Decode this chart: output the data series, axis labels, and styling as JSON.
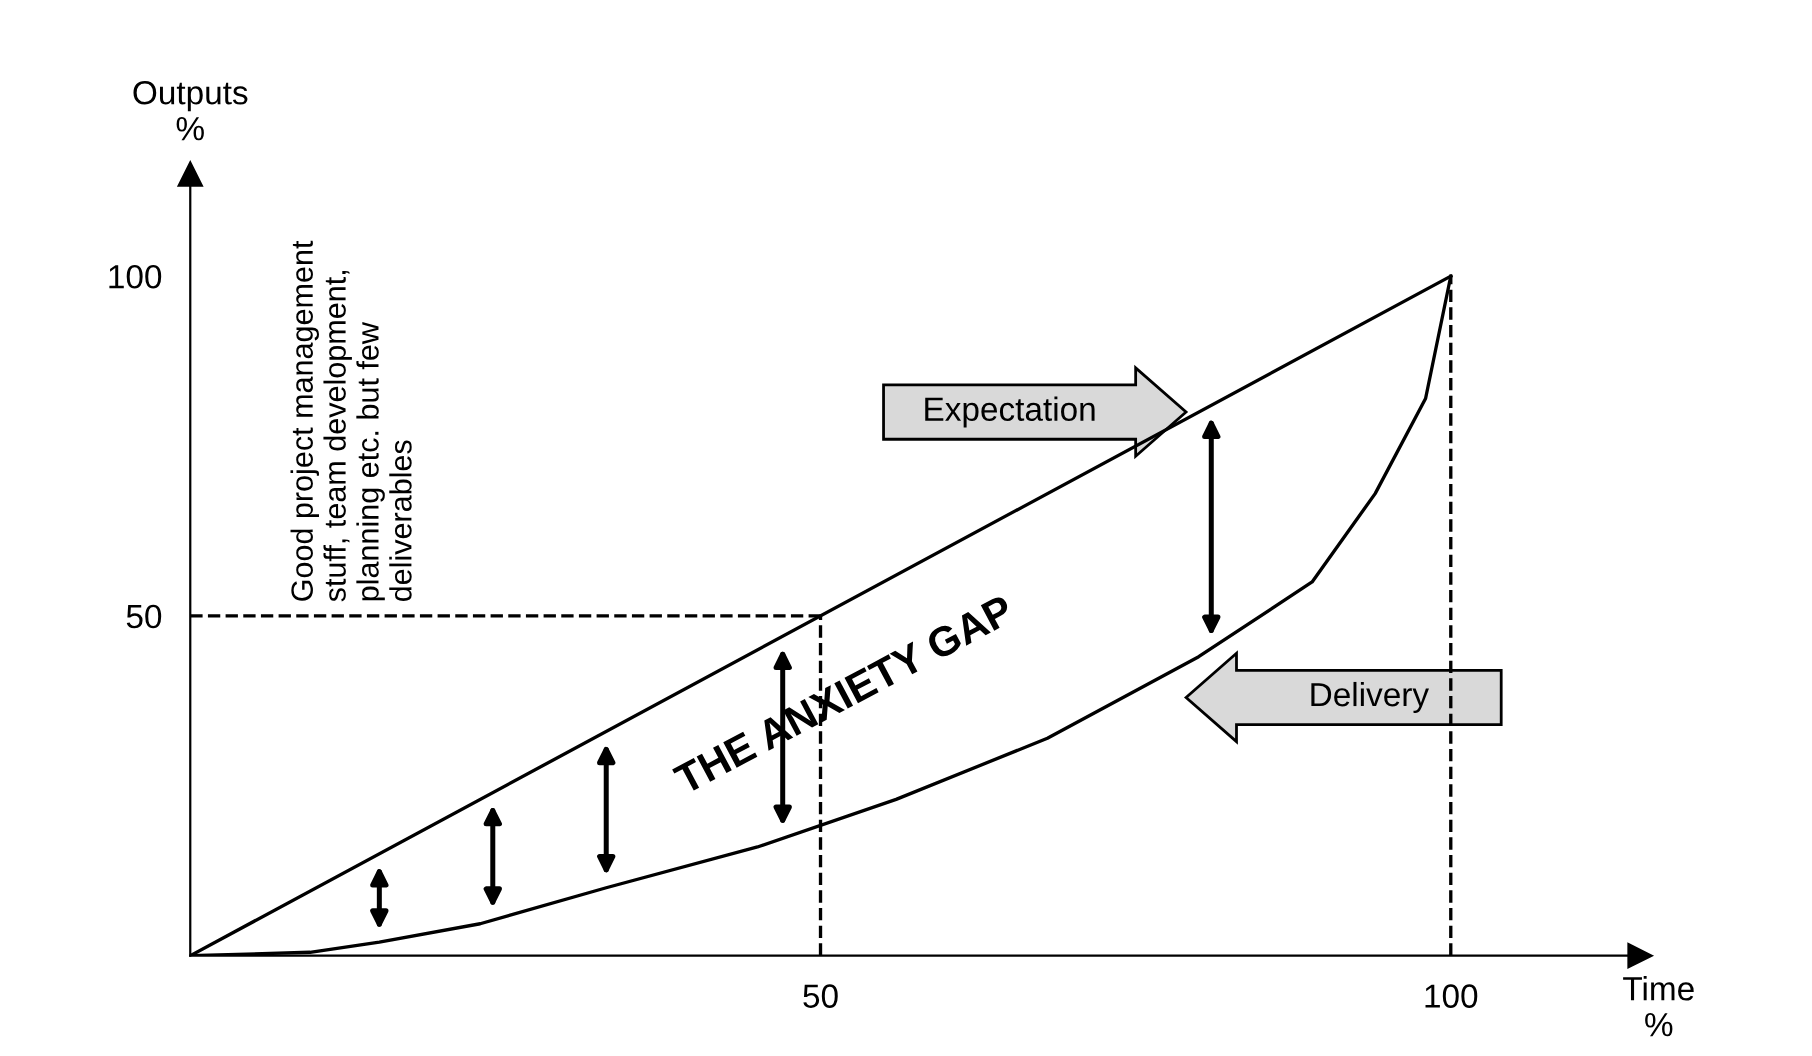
{
  "chart_data": {
    "type": "line",
    "xlabel": "Time\n%",
    "ylabel": "Outputs\n%",
    "xlim": [
      0,
      115
    ],
    "ylim": [
      0,
      115
    ],
    "xticks": [
      50,
      100
    ],
    "yticks": [
      50,
      100
    ],
    "grid": false,
    "legend": false,
    "marker": "none",
    "series": [
      {
        "name": "Expectation",
        "color": "#000000",
        "x": [
          0,
          100
        ],
        "values": [
          0,
          100
        ]
      },
      {
        "name": "Delivery",
        "color": "#000000",
        "x": [
          0,
          9.5,
          15,
          23,
          33,
          45,
          56,
          68,
          80,
          89,
          94,
          98,
          100
        ],
        "values": [
          0,
          0.5,
          2,
          4.7,
          10,
          16,
          23,
          32,
          44,
          55,
          68,
          82,
          100
        ]
      }
    ],
    "ref_lines": [
      {
        "axis": "y",
        "value": 50,
        "line_style": "dashed",
        "color": "#000000"
      },
      {
        "axis": "x",
        "value": 50,
        "line_style": "dashed",
        "color": "#000000"
      },
      {
        "axis": "x",
        "value": 100,
        "line_style": "dashed",
        "color": "#000000"
      }
    ],
    "annotations": [
      "THE ANXIETY GAP",
      "Good project management\nstuff, team development,\nplanning etc. but few\ndeliverables"
    ]
  }
}
